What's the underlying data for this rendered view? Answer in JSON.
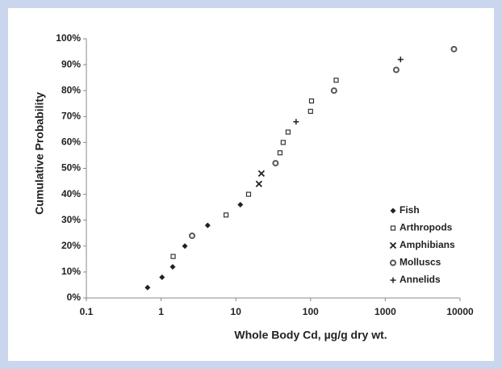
{
  "chart_data": {
    "type": "scatter",
    "xlabel": "Whole Body Cd, µg/g dry wt.",
    "ylabel": "Cumulative Probability",
    "xscale": "log",
    "xlim": [
      0.1,
      10000
    ],
    "xticks": [
      0.1,
      1,
      10,
      100,
      1000,
      10000
    ],
    "ylim": [
      0,
      100
    ],
    "yticks": [
      {
        "value": 0,
        "label": "0%"
      },
      {
        "value": 10,
        "label": "10%"
      },
      {
        "value": 20,
        "label": "20%"
      },
      {
        "value": 30,
        "label": "30%"
      },
      {
        "value": 40,
        "label": "40%"
      },
      {
        "value": 50,
        "label": "50%"
      },
      {
        "value": 60,
        "label": "60%"
      },
      {
        "value": 70,
        "label": "70%"
      },
      {
        "value": 80,
        "label": "80%"
      },
      {
        "value": 90,
        "label": "90%"
      },
      {
        "value": 100,
        "label": "100%"
      }
    ],
    "legend": "lower right",
    "series": [
      {
        "name": "Fish",
        "marker": "diamond",
        "color": "#222222",
        "x": [
          0.66,
          1.03,
          1.43,
          2.08,
          4.2,
          11.5
        ],
        "values": [
          4,
          8,
          12,
          20,
          28,
          36
        ]
      },
      {
        "name": "Arthropods",
        "marker": "square",
        "color": "#333333",
        "x": [
          1.45,
          7.4,
          14.8,
          39,
          43,
          50,
          100,
          103,
          220
        ],
        "values": [
          16,
          32,
          40,
          56,
          60,
          64,
          72,
          76,
          84
        ]
      },
      {
        "name": "Amphibians",
        "marker": "x",
        "color": "#222222",
        "x": [
          20.4,
          22
        ],
        "values": [
          44,
          48
        ]
      },
      {
        "name": "Molluscs",
        "marker": "circle",
        "color": "#555555",
        "x": [
          2.6,
          34,
          206,
          1400,
          8300
        ],
        "values": [
          24,
          52,
          80,
          88,
          96
        ]
      },
      {
        "name": "Annelids",
        "marker": "plus",
        "color": "#222222",
        "x": [
          64,
          1600
        ],
        "values": [
          68,
          92
        ]
      }
    ]
  }
}
